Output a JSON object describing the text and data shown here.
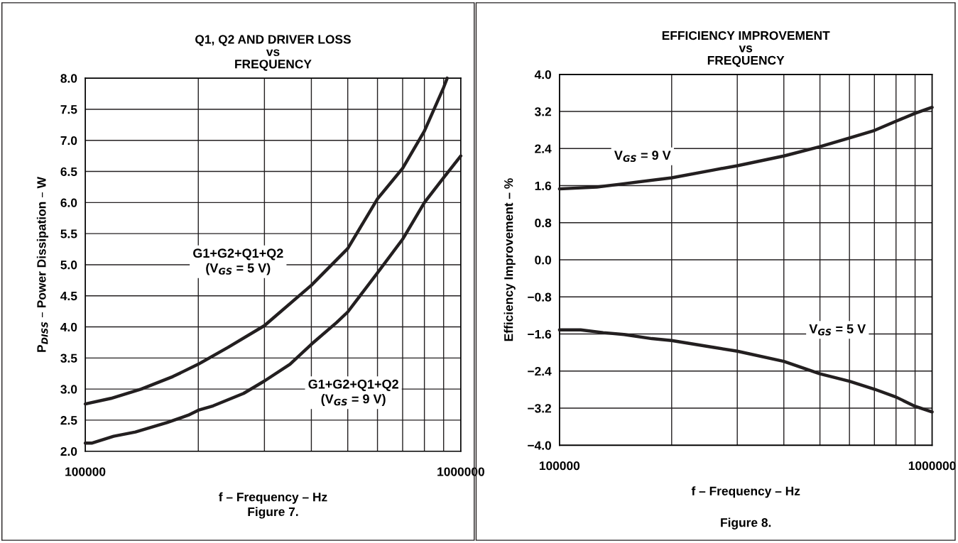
{
  "chart_data": [
    {
      "type": "line",
      "title": "Q1, Q2 AND DRIVER LOSS\nvs\nFREQUENCY",
      "xlabel": "f – Frequency – Hz",
      "ylabel": "P$_{DISS}$ – Power Dissipation – W",
      "log": "x",
      "grid": true,
      "xlim": [
        100000,
        1000000
      ],
      "ylim": [
        2.0,
        8.0
      ],
      "xticks": [
        100000,
        {
          "value": 200000,
          "label": null
        },
        {
          "value": 300000,
          "label": null
        },
        {
          "value": 400000,
          "label": null
        },
        {
          "value": 500000,
          "label": null
        },
        {
          "value": 600000,
          "label": null
        },
        {
          "value": 700000,
          "label": null
        },
        {
          "value": 800000,
          "label": null
        },
        {
          "value": 900000,
          "label": null
        },
        1000000
      ],
      "yticks": [
        {
          "value": 2,
          "label": "2.0"
        },
        2.5,
        {
          "value": 3,
          "label": "3.0"
        },
        3.5,
        {
          "value": 4,
          "label": "4.0"
        },
        4.5,
        {
          "value": 5,
          "label": "5.0"
        },
        5.5,
        {
          "value": 6,
          "label": "6.0"
        },
        6.5,
        {
          "value": 7,
          "label": "7.0"
        },
        7.5,
        {
          "value": 8,
          "label": "8.0"
        }
      ],
      "series": [
        {
          "color": "#231f20",
          "x": [
            100000,
            117000,
            141000,
            171000,
            200000,
            240000,
            300000,
            400000,
            500000,
            600000,
            700000,
            800000,
            900000,
            920000
          ],
          "values": [
            2.76,
            2.85,
            3.0,
            3.2,
            3.4,
            3.67,
            4.02,
            4.67,
            5.26,
            6.06,
            6.55,
            7.15,
            7.85,
            8.0
          ]
        },
        {
          "color": "#231f20",
          "x": [
            100000,
            104000,
            119000,
            136000,
            165000,
            188000,
            200000,
            219000,
            264000,
            300000,
            351000,
            400000,
            467000,
            500000,
            600000,
            700000,
            800000,
            900000,
            1000000
          ],
          "values": [
            2.13,
            2.13,
            2.24,
            2.31,
            2.46,
            2.58,
            2.66,
            2.73,
            2.93,
            3.13,
            3.4,
            3.72,
            4.07,
            4.24,
            4.87,
            5.41,
            6.0,
            6.4,
            6.75
          ]
        }
      ],
      "annotations": [
        "G1+G2+Q1+Q2\n(V$_{GS}$ = 5 V)",
        "G1+G2+Q1+Q2\n(V$_{GS}$ = 9 V)",
        "Figure 7."
      ]
    },
    {
      "type": "line",
      "title": "EFFICIENCY IMPROVEMENT\nvs\nFREQUENCY",
      "xlabel": "f – Frequency – Hz",
      "ylabel": "Efficiency Improvement – %",
      "log": "x",
      "grid": true,
      "xlim": [
        100000,
        1000000
      ],
      "ylim": [
        -4.0,
        4.0
      ],
      "xticks": [
        100000,
        {
          "value": 200000,
          "label": null
        },
        {
          "value": 300000,
          "label": null
        },
        {
          "value": 400000,
          "label": null
        },
        {
          "value": 500000,
          "label": null
        },
        {
          "value": 600000,
          "label": null
        },
        {
          "value": 700000,
          "label": null
        },
        {
          "value": 800000,
          "label": null
        },
        {
          "value": 900000,
          "label": null
        },
        1000000
      ],
      "yticks": [
        {
          "value": -4.0,
          "label": "−4.0"
        },
        {
          "value": -3.2,
          "label": "−3.2"
        },
        {
          "value": -2.4,
          "label": "−2.4"
        },
        {
          "value": -1.6,
          "label": "−1.6"
        },
        {
          "value": -0.8,
          "label": "−0.8"
        },
        {
          "value": 0,
          "label": "0.0"
        },
        0.8,
        1.6,
        2.4,
        3.2,
        {
          "value": 4,
          "label": "4.0"
        }
      ],
      "series": [
        {
          "color": "#231f20",
          "x": [
            100000,
            126000,
            145000,
            200000,
            260000,
            300000,
            400000,
            500000,
            600000,
            700000,
            800000,
            900000,
            1000000
          ],
          "values": [
            1.53,
            1.57,
            1.63,
            1.77,
            1.94,
            2.03,
            2.24,
            2.44,
            2.63,
            2.79,
            2.99,
            3.16,
            3.29
          ]
        },
        {
          "color": "#231f20",
          "x": [
            100000,
            114000,
            131000,
            149000,
            177000,
            200000,
            260000,
            300000,
            400000,
            500000,
            600000,
            700000,
            800000,
            900000,
            1000000
          ],
          "values": [
            -1.51,
            -1.51,
            -1.57,
            -1.61,
            -1.7,
            -1.74,
            -1.89,
            -1.97,
            -2.19,
            -2.46,
            -2.62,
            -2.79,
            -2.96,
            -3.16,
            -3.28
          ]
        }
      ],
      "annotations": [
        "V$_{GS}$ = 9 V",
        "V$_{GS}$ = 5 V",
        "Figure 8."
      ]
    }
  ]
}
